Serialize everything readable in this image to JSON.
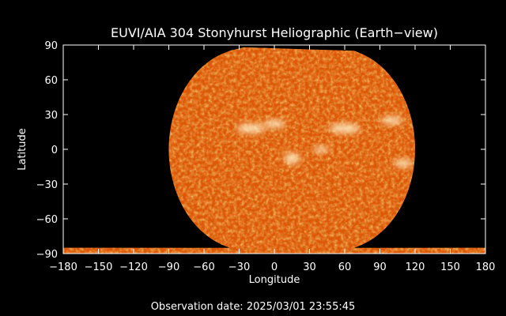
{
  "title": "EUVI/AIA 304 Stonyhurst Heliographic (Earth−view)",
  "xlabel": "Longitude",
  "ylabel": "Latitude",
  "footer": {
    "observation_label": "Observation date: 2025/03/01 23:55:45"
  },
  "axes": {
    "x_range": [
      -180,
      180
    ],
    "y_range": [
      -90,
      90
    ],
    "x_ticks": [
      -180,
      -150,
      -120,
      -90,
      -60,
      -30,
      0,
      30,
      60,
      90,
      120,
      150,
      180
    ],
    "y_ticks": [
      90,
      60,
      30,
      0,
      -30,
      -60,
      -90
    ],
    "x_tick_labels": [
      "−180",
      "−150",
      "−120",
      "−90",
      "−60",
      "−30",
      "0",
      "30",
      "60",
      "90",
      "120",
      "150",
      "180"
    ],
    "y_tick_labels": [
      "90",
      "60",
      "30",
      "0",
      "−30",
      "−60",
      "−90"
    ]
  },
  "colors": {
    "background": "#000000",
    "frame": "#ffffff",
    "solar_base": "#e2560a",
    "solar_dark": "#a52d00",
    "solar_bright": "#ffb04a",
    "active_region": "#fff0c8"
  }
}
